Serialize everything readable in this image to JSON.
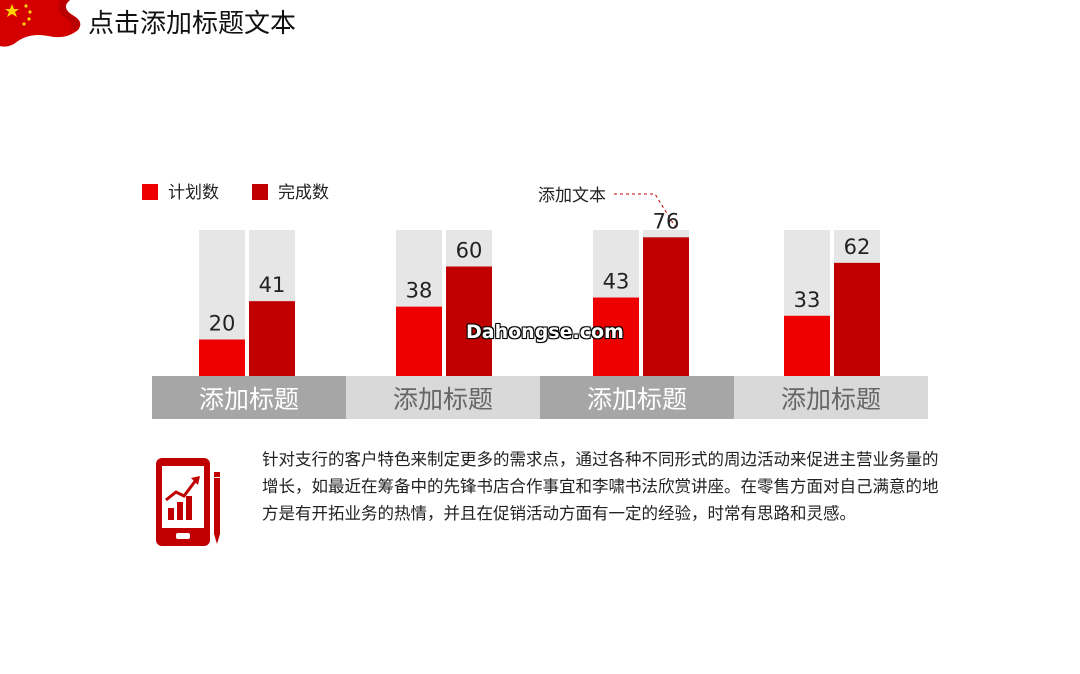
{
  "page": {
    "title": "点击添加标题文本",
    "watermark": "Dahongse.com",
    "annotation": "添加文本",
    "description": "针对支行的客户特色来制定更多的需求点，通过各种不同形式的周边活动来促进主营业务量的增长，如最近在筹备中的先锋书店合作事宜和李啸书法欣赏讲座。在零售方面对自己满意的地方是有开拓业务的热情，并且在促销活动方面有一定的经验，时常有思路和灵感。"
  },
  "colors": {
    "plan": "#ee0000",
    "done": "#c00000",
    "track": "#e6e6e6",
    "label_dark": "#a6a6a6",
    "label_light": "#d9d9d9"
  },
  "icons": {
    "flag": "flag-icon",
    "report": "phone-chart-icon"
  },
  "chart_data": {
    "type": "bar",
    "categories": [
      "添加标题",
      "添加标题",
      "添加标题",
      "添加标题"
    ],
    "series": [
      {
        "name": "计划数",
        "values": [
          20,
          38,
          43,
          33
        ]
      },
      {
        "name": "完成数",
        "values": [
          41,
          60,
          76,
          62
        ]
      }
    ],
    "ylim": [
      0,
      80
    ],
    "grid": false,
    "legend": "top-left"
  }
}
